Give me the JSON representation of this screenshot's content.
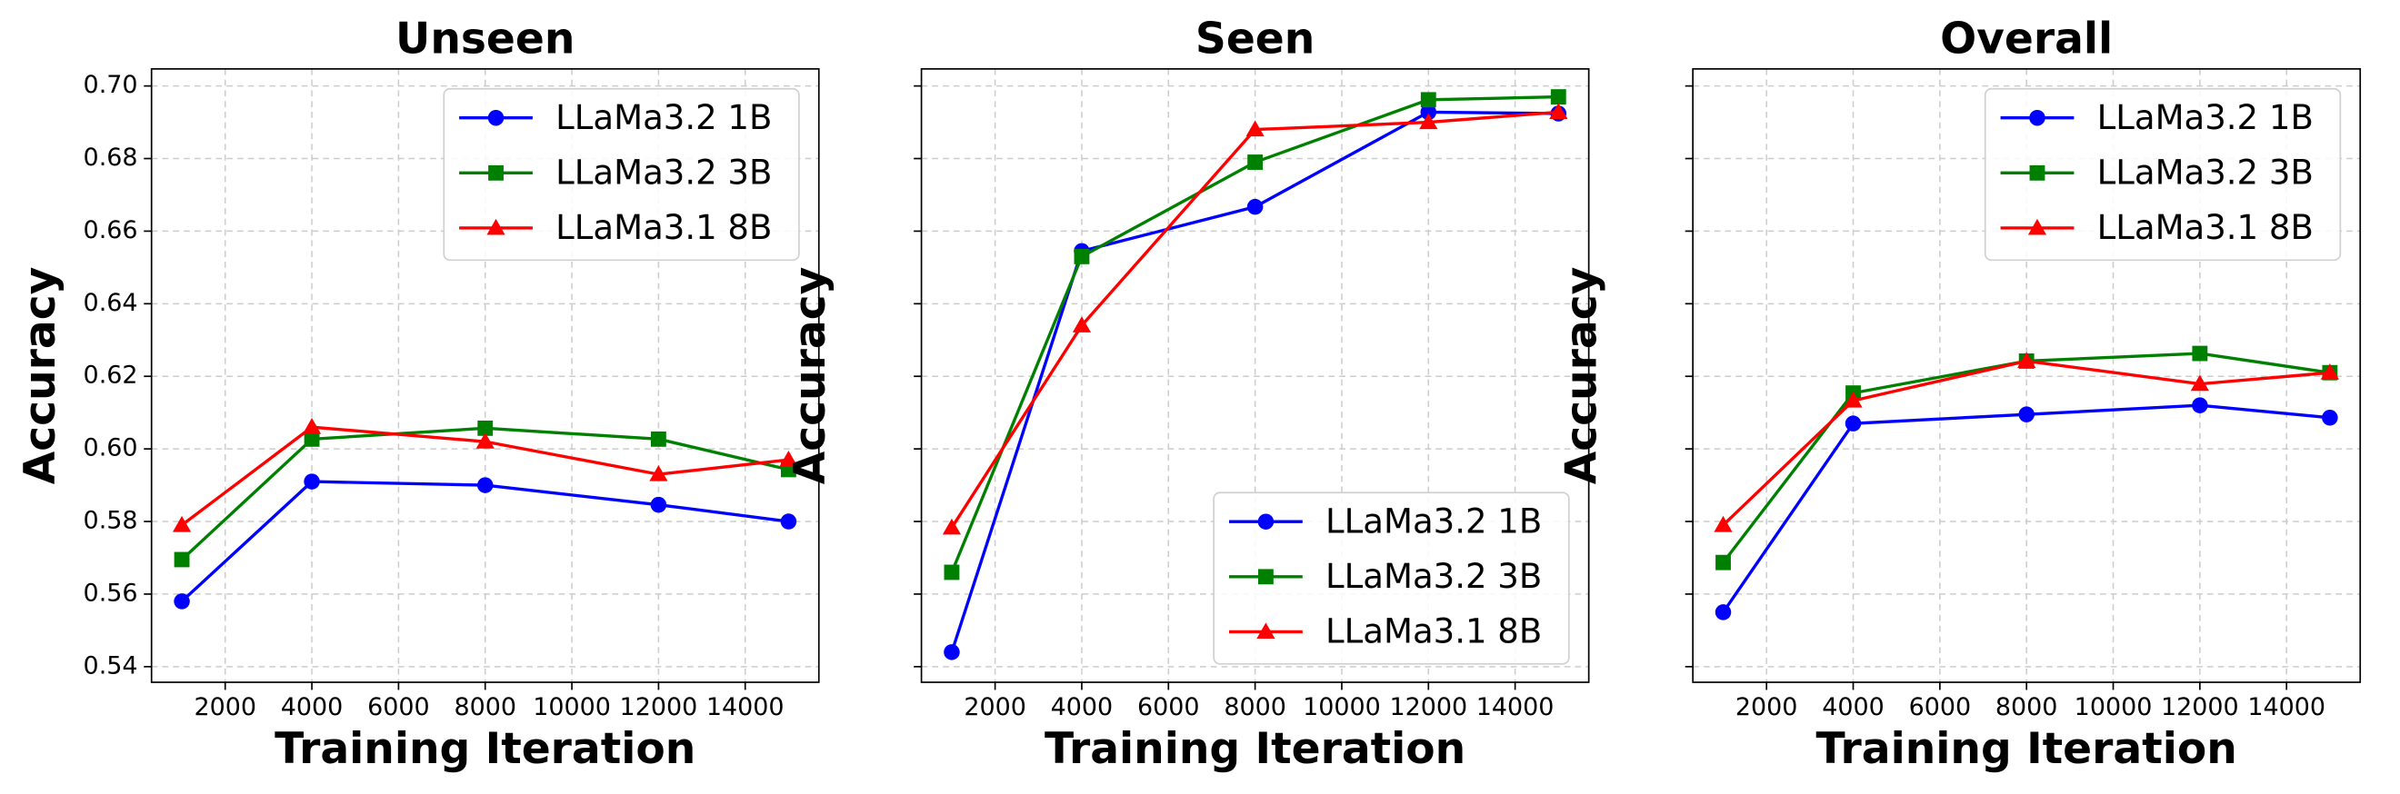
{
  "chart_data": [
    {
      "type": "line",
      "title": "Unseen",
      "xlabel": "Training Iteration",
      "ylabel": "Accuracy",
      "x": [
        1000,
        4000,
        8000,
        12000,
        15000
      ],
      "series": [
        {
          "name": "LLaMa3.2 1B",
          "color": "#0000ff",
          "marker": "circle",
          "values": [
            0.558,
            0.591,
            0.59,
            0.5846,
            0.58
          ]
        },
        {
          "name": "LLaMa3.2 3B",
          "color": "#008000",
          "marker": "square",
          "values": [
            0.5695,
            0.6027,
            0.6057,
            0.6027,
            0.5943
          ]
        },
        {
          "name": "LLaMa3.1 8B",
          "color": "#ff0000",
          "marker": "triangle",
          "values": [
            0.579,
            0.606,
            0.602,
            0.593,
            0.597
          ]
        }
      ],
      "xlim": [
        300,
        15700
      ],
      "xticks": [
        2000,
        4000,
        6000,
        8000,
        10000,
        12000,
        14000
      ],
      "ylim": [
        0.5357,
        0.7047
      ],
      "yticks": [
        0.54,
        0.56,
        0.58,
        {
          "value": 0.6,
          "label": "0.60"
        },
        0.62,
        0.64,
        0.66,
        0.68,
        {
          "value": 0.7,
          "label": "0.70"
        }
      ],
      "ytick_labels": true,
      "grid": true,
      "legend": "upper right"
    },
    {
      "type": "line",
      "title": "Seen",
      "xlabel": "Training Iteration",
      "ylabel": "Accuracy",
      "x": [
        1000,
        4000,
        8000,
        12000,
        15000
      ],
      "series": [
        {
          "name": "LLaMa3.2 1B",
          "color": "#0000ff",
          "marker": "circle",
          "values": [
            0.544,
            0.6545,
            0.6667,
            0.6928,
            0.6924
          ]
        },
        {
          "name": "LLaMa3.2 3B",
          "color": "#008000",
          "marker": "square",
          "values": [
            0.566,
            0.653,
            0.679,
            0.6962,
            0.697
          ]
        },
        {
          "name": "LLaMa3.1 8B",
          "color": "#ff0000",
          "marker": "triangle",
          "values": [
            0.5783,
            0.634,
            0.688,
            0.69,
            0.6928
          ]
        }
      ],
      "xlim": [
        300,
        15700
      ],
      "xticks": [
        2000,
        4000,
        6000,
        8000,
        10000,
        12000,
        14000
      ],
      "ylim": [
        0.5357,
        0.7047
      ],
      "yticks": [
        0.54,
        0.56,
        0.58,
        0.6,
        0.62,
        0.64,
        0.66,
        0.68,
        0.7
      ],
      "ytick_labels": false,
      "grid": true,
      "legend": "lower right"
    },
    {
      "type": "line",
      "title": "Overall",
      "xlabel": "Training Iteration",
      "ylabel": "Accuracy",
      "x": [
        1000,
        4000,
        8000,
        12000,
        15000
      ],
      "series": [
        {
          "name": "LLaMa3.2 1B",
          "color": "#0000ff",
          "marker": "circle",
          "values": [
            0.555,
            0.607,
            0.6095,
            0.612,
            0.6086
          ]
        },
        {
          "name": "LLaMa3.2 3B",
          "color": "#008000",
          "marker": "square",
          "values": [
            0.5687,
            0.6154,
            0.6242,
            0.6263,
            0.621
          ]
        },
        {
          "name": "LLaMa3.1 8B",
          "color": "#ff0000",
          "marker": "triangle",
          "values": [
            0.579,
            0.6133,
            0.6242,
            0.6179,
            0.621
          ]
        }
      ],
      "xlim": [
        300,
        15700
      ],
      "xticks": [
        2000,
        4000,
        6000,
        8000,
        10000,
        12000,
        14000
      ],
      "ylim": [
        0.5357,
        0.7047
      ],
      "yticks": [
        0.54,
        0.56,
        0.58,
        0.6,
        0.62,
        0.64,
        0.66,
        0.68,
        0.7
      ],
      "ytick_labels": false,
      "grid": true,
      "legend": "upper right"
    }
  ]
}
